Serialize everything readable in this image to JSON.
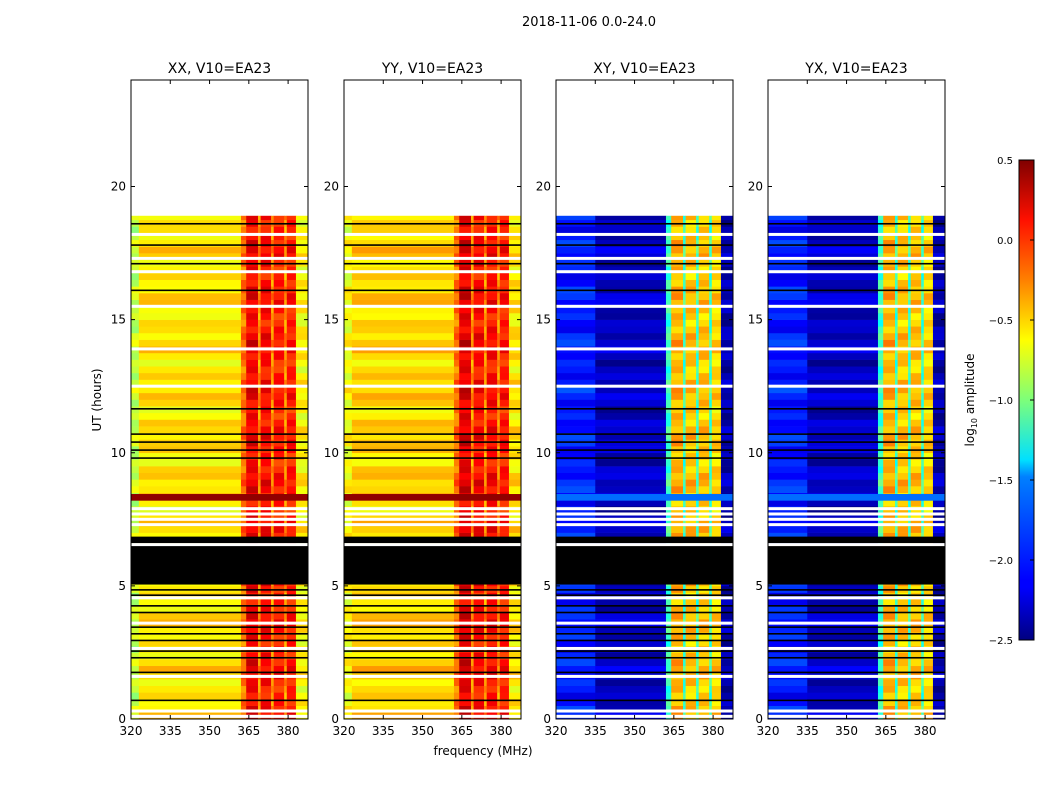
{
  "chart_data": {
    "type": "heatmap",
    "title": "2018-11-06 0.0-24.0",
    "xlabel": "frequency (MHz)",
    "ylabel": "UT (hours)",
    "xlim": [
      320,
      387.6
    ],
    "ylim": [
      0,
      24
    ],
    "xticks": [
      "320",
      "335",
      "350",
      "365",
      "380"
    ],
    "xtick_values": [
      320,
      335,
      350,
      365,
      380
    ],
    "yticks": [
      "0",
      "5",
      "10",
      "15",
      "20"
    ],
    "ytick_values": [
      0,
      5,
      10,
      15,
      20
    ],
    "data_time_range": [
      0,
      18.9
    ],
    "time_step_hours": 0.25,
    "flag_black_block": [
      [
        5.05,
        6.5
      ],
      [
        6.6,
        6.85
      ]
    ],
    "flag_white_lines": [
      0.1,
      0.3,
      1.6,
      2.65,
      3.6,
      4.55,
      6.55,
      7.3,
      7.5,
      7.7,
      7.9,
      12.5,
      13.9,
      15.5,
      16.8,
      17.3,
      18.2
    ],
    "flag_black_lines": [
      0.7,
      1.75,
      2.3,
      2.55,
      2.95,
      3.2,
      3.45,
      4.0,
      4.25,
      4.65,
      4.85,
      9.8,
      10.1,
      10.4,
      10.7,
      11.65,
      16.1,
      17.1,
      17.8,
      18.6
    ],
    "strong_period": [
      8.2,
      8.45
    ],
    "panels": [
      {
        "title": "XX, V10=EA23",
        "strong_value": 0.45,
        "freq_edges": [
          320,
          323,
          362,
          364,
          368.5,
          369.5,
          373.5,
          374.5,
          378.5,
          379.5,
          383,
          387.6
        ],
        "values": [
          -0.8,
          -0.55,
          -0.2,
          0.15,
          -0.3,
          0.1,
          -0.3,
          0.05,
          -0.3,
          0.05,
          -0.6
        ]
      },
      {
        "title": "YY, V10=EA23",
        "strong_value": 0.45,
        "freq_edges": [
          320,
          323,
          362,
          364,
          368.5,
          369.5,
          373.5,
          374.5,
          378.5,
          379.5,
          383,
          387.6
        ],
        "values": [
          -0.65,
          -0.5,
          -0.2,
          0.2,
          -0.3,
          0.1,
          -0.3,
          0.1,
          -0.3,
          0.05,
          -0.55
        ]
      },
      {
        "title": "XY, V10=EA23",
        "strong_value": -1.8,
        "freq_edges": [
          320,
          335,
          362,
          364,
          368.5,
          369.5,
          373.5,
          374.5,
          378.5,
          379.5,
          383,
          387.6
        ],
        "values": [
          -2.05,
          -2.3,
          -1.2,
          -0.4,
          -1.2,
          -0.45,
          -1.2,
          -0.45,
          -1.2,
          -0.5,
          -2.35
        ]
      },
      {
        "title": "YX, V10=EA23",
        "strong_value": -1.8,
        "freq_edges": [
          320,
          335,
          362,
          364,
          368.5,
          369.5,
          373.5,
          374.5,
          378.5,
          379.5,
          383,
          387.6
        ],
        "values": [
          -2.05,
          -2.3,
          -1.2,
          -0.4,
          -1.2,
          -0.45,
          -1.2,
          -0.45,
          -1.2,
          -0.5,
          -2.35
        ]
      }
    ],
    "colorbar": {
      "label": "log10 amplitude",
      "label_base": "log",
      "label_sub": "10",
      "label_rest": " amplitude",
      "colormap": "jet",
      "range": [
        -2.5,
        0.5
      ],
      "ticks": [
        "0.5",
        "0.0",
        "−0.5",
        "−1.0",
        "−1.5",
        "−2.0",
        "−2.5"
      ],
      "tick_values": [
        0.5,
        0.0,
        -0.5,
        -1.0,
        -1.5,
        -2.0,
        -2.5
      ]
    }
  }
}
